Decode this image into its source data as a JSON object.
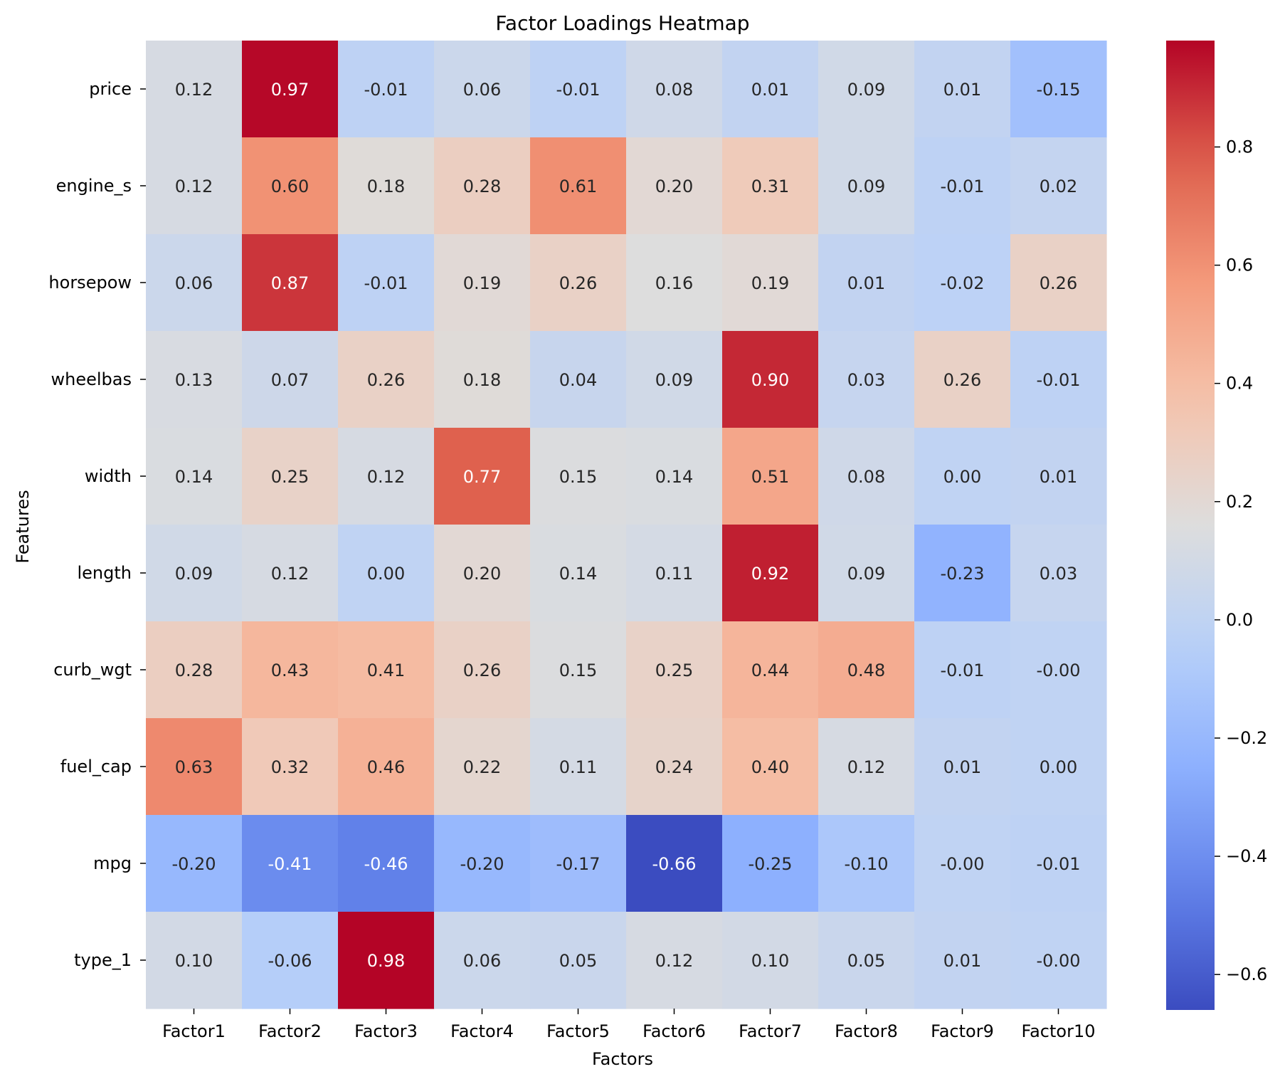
{
  "chart_data": {
    "type": "heatmap",
    "title": "Factor Loadings Heatmap",
    "xlabel": "Factors",
    "ylabel": "Features",
    "x_categories": [
      "Factor1",
      "Factor2",
      "Factor3",
      "Factor4",
      "Factor5",
      "Factor6",
      "Factor7",
      "Factor8",
      "Factor9",
      "Factor10"
    ],
    "y_categories": [
      "price",
      "engine_s",
      "horsepow",
      "wheelbas",
      "width",
      "length",
      "curb_wgt",
      "fuel_cap",
      "mpg",
      "type_1"
    ],
    "values": [
      [
        0.12,
        0.97,
        -0.01,
        0.06,
        -0.01,
        0.08,
        0.01,
        0.09,
        0.01,
        -0.15
      ],
      [
        0.12,
        0.6,
        0.18,
        0.28,
        0.61,
        0.2,
        0.31,
        0.09,
        -0.01,
        0.02
      ],
      [
        0.06,
        0.87,
        -0.01,
        0.19,
        0.26,
        0.16,
        0.19,
        0.01,
        -0.02,
        0.26
      ],
      [
        0.13,
        0.07,
        0.26,
        0.18,
        0.04,
        0.09,
        0.9,
        0.03,
        0.26,
        -0.01
      ],
      [
        0.14,
        0.25,
        0.12,
        0.77,
        0.15,
        0.14,
        0.51,
        0.08,
        0.0,
        0.01
      ],
      [
        0.09,
        0.12,
        0.0,
        0.2,
        0.14,
        0.11,
        0.92,
        0.09,
        -0.23,
        0.03
      ],
      [
        0.28,
        0.43,
        0.41,
        0.26,
        0.15,
        0.25,
        0.44,
        0.48,
        -0.01,
        -0.0
      ],
      [
        0.63,
        0.32,
        0.46,
        0.22,
        0.11,
        0.24,
        0.4,
        0.12,
        0.01,
        0.0
      ],
      [
        -0.2,
        -0.41,
        -0.46,
        -0.2,
        -0.17,
        -0.66,
        -0.25,
        -0.1,
        -0.0,
        -0.01
      ],
      [
        0.1,
        -0.06,
        0.98,
        0.06,
        0.05,
        0.12,
        0.1,
        0.05,
        0.01,
        -0.0
      ]
    ],
    "labels": [
      [
        "0.12",
        "0.97",
        "-0.01",
        "0.06",
        "-0.01",
        "0.08",
        "0.01",
        "0.09",
        "0.01",
        "-0.15"
      ],
      [
        "0.12",
        "0.60",
        "0.18",
        "0.28",
        "0.61",
        "0.20",
        "0.31",
        "0.09",
        "-0.01",
        "0.02"
      ],
      [
        "0.06",
        "0.87",
        "-0.01",
        "0.19",
        "0.26",
        "0.16",
        "0.19",
        "0.01",
        "-0.02",
        "0.26"
      ],
      [
        "0.13",
        "0.07",
        "0.26",
        "0.18",
        "0.04",
        "0.09",
        "0.90",
        "0.03",
        "0.26",
        "-0.01"
      ],
      [
        "0.14",
        "0.25",
        "0.12",
        "0.77",
        "0.15",
        "0.14",
        "0.51",
        "0.08",
        "0.00",
        "0.01"
      ],
      [
        "0.09",
        "0.12",
        "0.00",
        "0.20",
        "0.14",
        "0.11",
        "0.92",
        "0.09",
        "-0.23",
        "0.03"
      ],
      [
        "0.28",
        "0.43",
        "0.41",
        "0.26",
        "0.15",
        "0.25",
        "0.44",
        "0.48",
        "-0.01",
        "-0.00"
      ],
      [
        "0.63",
        "0.32",
        "0.46",
        "0.22",
        "0.11",
        "0.24",
        "0.40",
        "0.12",
        "0.01",
        "0.00"
      ],
      [
        "-0.20",
        "-0.41",
        "-0.46",
        "-0.20",
        "-0.17",
        "-0.66",
        "-0.25",
        "-0.10",
        "-0.00",
        "-0.01"
      ],
      [
        "0.10",
        "-0.06",
        "0.98",
        "0.06",
        "0.05",
        "0.12",
        "0.10",
        "0.05",
        "0.01",
        "-0.00"
      ]
    ],
    "colormap": "coolwarm",
    "vmin": -0.66,
    "vmax": 0.98,
    "colorbar_ticks": [
      0.8,
      0.6,
      0.4,
      0.2,
      0.0,
      -0.2,
      -0.4,
      -0.6
    ],
    "colorbar_tick_labels": [
      "0.8",
      "0.6",
      "0.4",
      "0.2",
      "0.0",
      "−0.2",
      "−0.4",
      "−0.6"
    ],
    "grid": false,
    "legend": "colorbar-right"
  }
}
